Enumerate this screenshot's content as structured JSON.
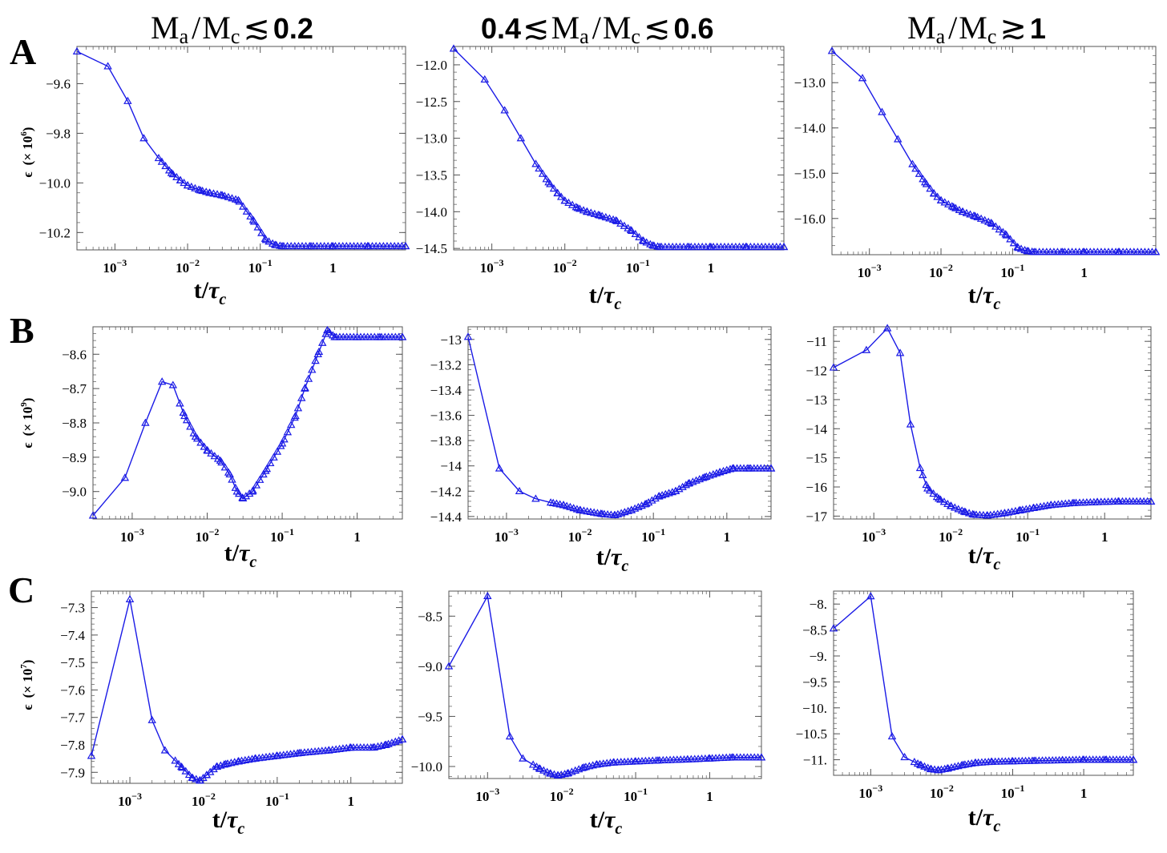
{
  "columns": [
    {
      "ratio": "M",
      "sub_a": "a",
      "slash": "/",
      "ratio2": "M",
      "sub_c": "c",
      "prefix": "",
      "rel": "≲",
      "rel_pre": "",
      "value": "0.2"
    },
    {
      "ratio": "M",
      "sub_a": "a",
      "slash": "/",
      "ratio2": "M",
      "sub_c": "c",
      "prefix": "0.4",
      "rel_pre": "≲",
      "rel": "≲",
      "value": "0.6"
    },
    {
      "ratio": "M",
      "sub_a": "a",
      "slash": "/",
      "ratio2": "M",
      "sub_c": "c",
      "prefix": "",
      "rel_pre": "",
      "rel": "≳",
      "value": "1"
    }
  ],
  "rows": [
    {
      "label": "A",
      "yscale_base": "× 10",
      "yscale_exp": "6"
    },
    {
      "label": "B",
      "yscale_base": "× 10",
      "yscale_exp": "9"
    },
    {
      "label": "C",
      "yscale_base": "× 10",
      "yscale_exp": "7"
    }
  ],
  "axis": {
    "ysymbol": "ϵ",
    "xlabel_t": "t/",
    "xlabel_tau": "τ",
    "xlabel_c": "c",
    "xtick_base": "10",
    "xtick_exps": [
      "-3",
      "-2",
      "-1"
    ],
    "xtick_one": "1"
  },
  "colors": {
    "series": "#1a1ae6",
    "frame": "#555555",
    "text": "#000000"
  },
  "chart_data": [
    {
      "type": "line",
      "row": "A",
      "col": 1,
      "marker": "triangle",
      "xscale": "log",
      "xlim": [
        0.0003,
        10
      ],
      "ylim": [
        -10.27,
        -9.45
      ],
      "yticks": [
        -9.6,
        -9.8,
        -10.0,
        -10.2
      ],
      "ytick_decimals": 1,
      "xticks": [
        0.001,
        0.01,
        0.1,
        1
      ],
      "ylabel": "ϵ (× 10^6)",
      "xlabel": "t/τc",
      "x": [
        0.0003,
        0.0008,
        0.0015,
        0.0025,
        0.004,
        0.006,
        0.008,
        0.01,
        0.015,
        0.02,
        0.03,
        0.05,
        0.08,
        0.12,
        0.16,
        0.2,
        0.5,
        1,
        3,
        10
      ],
      "y": [
        -9.47,
        -9.53,
        -9.67,
        -9.82,
        -9.9,
        -9.96,
        -9.99,
        -10.01,
        -10.03,
        -10.04,
        -10.05,
        -10.07,
        -10.15,
        -10.23,
        -10.25,
        -10.255,
        -10.255,
        -10.255,
        -10.255,
        -10.255
      ]
    },
    {
      "type": "line",
      "row": "A",
      "col": 2,
      "marker": "triangle",
      "xscale": "log",
      "xlim": [
        0.0003,
        10
      ],
      "ylim": [
        -14.52,
        -11.75
      ],
      "yticks": [
        -12.0,
        -12.5,
        -13.0,
        -13.5,
        -14.0,
        -14.5
      ],
      "ytick_decimals": 1,
      "xticks": [
        0.001,
        0.01,
        0.1,
        1
      ],
      "ylabel": "ϵ (× 10^6)",
      "xlabel": "t/τc",
      "x": [
        0.0003,
        0.0008,
        0.0015,
        0.0025,
        0.004,
        0.006,
        0.008,
        0.01,
        0.015,
        0.02,
        0.03,
        0.05,
        0.08,
        0.12,
        0.16,
        0.2,
        0.5,
        1,
        3,
        10
      ],
      "y": [
        -11.78,
        -12.2,
        -12.62,
        -13.0,
        -13.35,
        -13.6,
        -13.75,
        -13.85,
        -13.95,
        -14.0,
        -14.05,
        -14.12,
        -14.25,
        -14.4,
        -14.46,
        -14.48,
        -14.48,
        -14.48,
        -14.48,
        -14.48
      ]
    },
    {
      "type": "line",
      "row": "A",
      "col": 3,
      "marker": "triangle",
      "xscale": "log",
      "xlim": [
        0.0003,
        10
      ],
      "ylim": [
        -16.8,
        -12.2
      ],
      "yticks": [
        -13.0,
        -14.0,
        -15.0,
        -16.0
      ],
      "ytick_decimals": 1,
      "xticks": [
        0.001,
        0.01,
        0.1,
        1
      ],
      "ylabel": "ϵ (× 10^6)",
      "xlabel": "t/τc",
      "x": [
        0.0003,
        0.0008,
        0.0015,
        0.0025,
        0.004,
        0.006,
        0.008,
        0.01,
        0.015,
        0.02,
        0.03,
        0.05,
        0.08,
        0.12,
        0.16,
        0.2,
        0.5,
        1,
        3,
        10
      ],
      "y": [
        -12.3,
        -12.9,
        -13.65,
        -14.25,
        -14.8,
        -15.2,
        -15.45,
        -15.6,
        -15.75,
        -15.85,
        -15.95,
        -16.1,
        -16.35,
        -16.65,
        -16.72,
        -16.74,
        -16.74,
        -16.74,
        -16.74,
        -16.74
      ]
    },
    {
      "type": "line",
      "row": "B",
      "col": 1,
      "marker": "triangle",
      "xscale": "log",
      "xlim": [
        0.0003,
        4
      ],
      "ylim": [
        -9.08,
        -8.52
      ],
      "yticks": [
        -8.6,
        -8.7,
        -8.8,
        -8.9,
        -9.0
      ],
      "ytick_decimals": 1,
      "xticks": [
        0.001,
        0.01,
        0.1,
        1
      ],
      "ylabel": "ϵ (× 10^9)",
      "xlabel": "t/τc",
      "x": [
        0.0003,
        0.0008,
        0.0015,
        0.0025,
        0.0035,
        0.005,
        0.007,
        0.01,
        0.015,
        0.02,
        0.025,
        0.03,
        0.04,
        0.06,
        0.1,
        0.15,
        0.2,
        0.3,
        0.4,
        0.5,
        1,
        2,
        4
      ],
      "y": [
        -9.07,
        -8.96,
        -8.8,
        -8.68,
        -8.69,
        -8.78,
        -8.84,
        -8.88,
        -8.91,
        -8.95,
        -9.0,
        -9.02,
        -9.0,
        -8.94,
        -8.86,
        -8.78,
        -8.7,
        -8.6,
        -8.53,
        -8.55,
        -8.55,
        -8.55,
        -8.55
      ]
    },
    {
      "type": "line",
      "row": "B",
      "col": 2,
      "marker": "triangle",
      "xscale": "log",
      "xlim": [
        0.0003,
        4
      ],
      "ylim": [
        -14.42,
        -12.9
      ],
      "yticks": [
        -13,
        -13.2,
        -13.4,
        -13.6,
        -13.8,
        -14,
        -14.2,
        -14.4
      ],
      "ytick_decimals": -1,
      "xticks": [
        0.001,
        0.01,
        0.1,
        1
      ],
      "ylabel": "ϵ (× 10^9)",
      "xlabel": "t/τc",
      "x": [
        0.0003,
        0.0008,
        0.0015,
        0.0025,
        0.004,
        0.006,
        0.01,
        0.02,
        0.03,
        0.05,
        0.08,
        0.12,
        0.2,
        0.3,
        0.5,
        0.8,
        1.2,
        2,
        4
      ],
      "y": [
        -12.98,
        -14.02,
        -14.2,
        -14.26,
        -14.29,
        -14.31,
        -14.35,
        -14.38,
        -14.39,
        -14.35,
        -14.3,
        -14.24,
        -14.2,
        -14.14,
        -14.09,
        -14.05,
        -14.02,
        -14.02,
        -14.02
      ]
    },
    {
      "type": "line",
      "row": "B",
      "col": 3,
      "marker": "triangle",
      "xscale": "log",
      "xlim": [
        0.0003,
        4
      ],
      "ylim": [
        -17.1,
        -10.5
      ],
      "yticks": [
        -11,
        -12,
        -13,
        -14,
        -15,
        -16,
        -17
      ],
      "ytick_decimals": 0,
      "xticks": [
        0.001,
        0.01,
        0.1,
        1
      ],
      "ylabel": "ϵ (× 10^9)",
      "xlabel": "t/τc",
      "x": [
        0.0003,
        0.0008,
        0.0015,
        0.0022,
        0.003,
        0.004,
        0.005,
        0.007,
        0.01,
        0.015,
        0.02,
        0.03,
        0.05,
        0.08,
        0.12,
        0.2,
        0.4,
        0.8,
        1.5,
        4
      ],
      "y": [
        -11.9,
        -11.3,
        -10.55,
        -11.4,
        -13.85,
        -15.35,
        -16.05,
        -16.4,
        -16.65,
        -16.85,
        -16.95,
        -16.98,
        -16.9,
        -16.8,
        -16.72,
        -16.62,
        -16.55,
        -16.52,
        -16.5,
        -16.5
      ]
    },
    {
      "type": "line",
      "row": "C",
      "col": 1,
      "marker": "triangle",
      "xscale": "log",
      "xlim": [
        0.0003,
        5
      ],
      "ylim": [
        -7.94,
        -7.24
      ],
      "yticks": [
        -7.3,
        -7.4,
        -7.5,
        -7.6,
        -7.7,
        -7.8,
        -7.9
      ],
      "ytick_decimals": 1,
      "xticks": [
        0.001,
        0.01,
        0.1,
        1
      ],
      "ylabel": "ϵ (× 10^7)",
      "xlabel": "t/τc",
      "x": [
        0.0003,
        0.001,
        0.002,
        0.003,
        0.005,
        0.007,
        0.009,
        0.011,
        0.015,
        0.02,
        0.03,
        0.05,
        0.1,
        0.2,
        0.5,
        1,
        2,
        3,
        5
      ],
      "y": [
        -7.84,
        -7.27,
        -7.71,
        -7.82,
        -7.88,
        -7.92,
        -7.93,
        -7.91,
        -7.88,
        -7.87,
        -7.86,
        -7.85,
        -7.84,
        -7.83,
        -7.82,
        -7.81,
        -7.81,
        -7.8,
        -7.78
      ]
    },
    {
      "type": "line",
      "row": "C",
      "col": 2,
      "marker": "triangle",
      "xscale": "log",
      "xlim": [
        0.0003,
        5
      ],
      "ylim": [
        -10.12,
        -8.25
      ],
      "yticks": [
        -8.5,
        -9.0,
        -9.5,
        -10.0
      ],
      "ytick_decimals": 1,
      "xticks": [
        0.001,
        0.01,
        0.1,
        1
      ],
      "ylabel": "ϵ (× 10^7)",
      "xlabel": "t/τc",
      "x": [
        0.0003,
        0.001,
        0.002,
        0.003,
        0.005,
        0.007,
        0.009,
        0.012,
        0.02,
        0.03,
        0.05,
        0.1,
        0.2,
        0.5,
        1,
        2,
        5
      ],
      "y": [
        -9.0,
        -8.3,
        -9.7,
        -9.92,
        -10.02,
        -10.07,
        -10.09,
        -10.07,
        -10.01,
        -9.98,
        -9.96,
        -9.95,
        -9.94,
        -9.93,
        -9.92,
        -9.91,
        -9.91
      ]
    },
    {
      "type": "line",
      "row": "C",
      "col": 3,
      "marker": "triangle",
      "xscale": "log",
      "xlim": [
        0.0003,
        5
      ],
      "ylim": [
        -11.3,
        -7.75
      ],
      "yticks": [
        -8.0,
        -8.5,
        -9.0,
        -9.5,
        -10.0,
        -10.5,
        -11.0
      ],
      "ytick_decimals": -2,
      "xticks": [
        0.001,
        0.01,
        0.1,
        1
      ],
      "ylabel": "ϵ (× 10^7)",
      "xlabel": "t/τc",
      "x": [
        0.0003,
        0.001,
        0.002,
        0.003,
        0.005,
        0.007,
        0.009,
        0.012,
        0.02,
        0.03,
        0.05,
        0.1,
        0.2,
        0.5,
        1,
        2,
        5
      ],
      "y": [
        -8.47,
        -7.85,
        -10.55,
        -10.95,
        -11.1,
        -11.18,
        -11.2,
        -11.17,
        -11.1,
        -11.06,
        -11.04,
        -11.03,
        -11.02,
        -11.01,
        -11.0,
        -11.0,
        -11.0
      ]
    }
  ]
}
